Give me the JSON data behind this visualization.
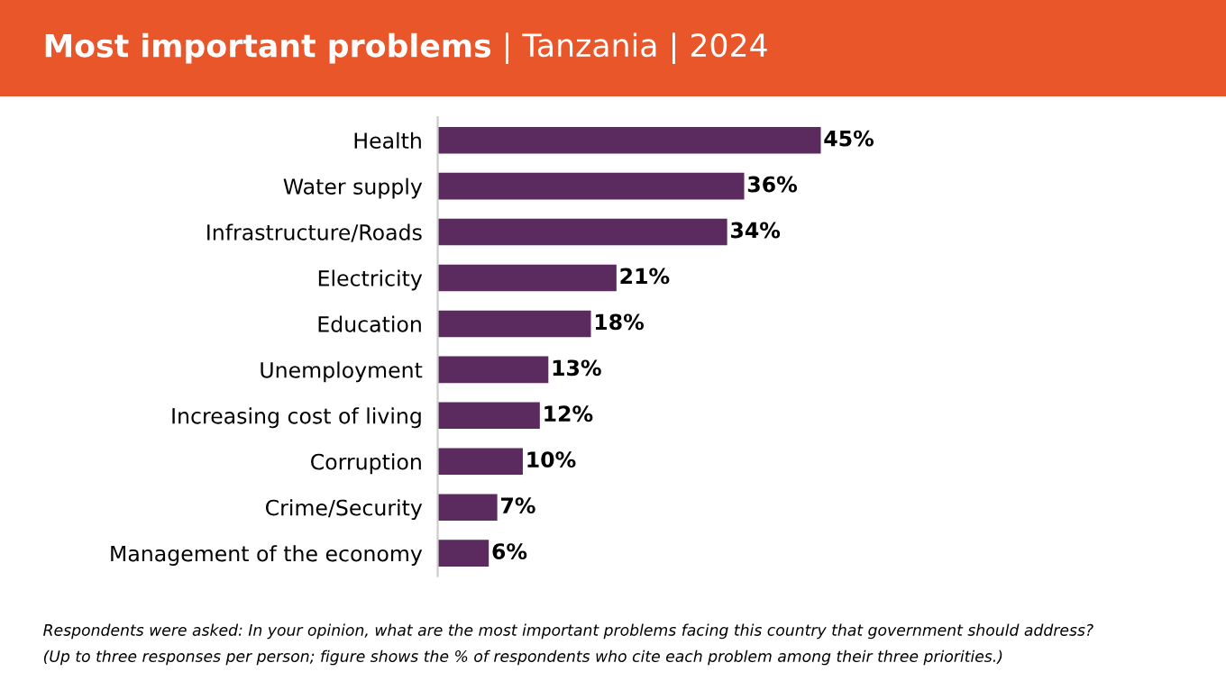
{
  "chart_data": {
    "type": "bar",
    "orientation": "horizontal",
    "title": "Most important problems",
    "subtitle": "| Tanzania | 2024",
    "categories": [
      "Health",
      "Water supply",
      "Infrastructure/Roads",
      "Electricity",
      "Education",
      "Unemployment",
      "Increasing cost of living",
      "Corruption",
      "Crime/Security",
      "Management of the economy"
    ],
    "values": [
      45,
      36,
      34,
      21,
      18,
      13,
      12,
      10,
      7,
      6
    ],
    "value_labels": [
      "45%",
      "36%",
      "34%",
      "21%",
      "18%",
      "13%",
      "12%",
      "10%",
      "7%",
      "6%"
    ],
    "color": "#5b2a5f",
    "annotations": [
      "Respondents were asked: In your opinion, what are the most important problems facing this country that government should address?",
      "(Up to three responses per person; figure shows the % of respondents who cite each problem among their three priorities.)"
    ]
  }
}
